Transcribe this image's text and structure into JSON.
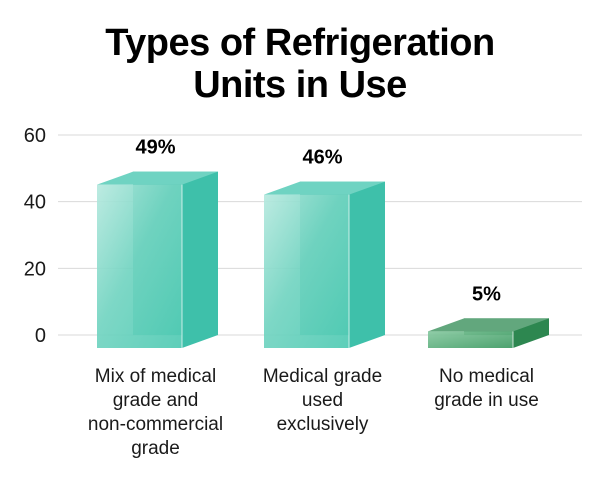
{
  "chart_data": {
    "type": "bar",
    "title_lines": [
      "Types of Refrigeration",
      "Units in Use"
    ],
    "categories": [
      [
        "Mix of medical",
        "grade and",
        "non-commercial",
        "grade"
      ],
      [
        "Medical grade",
        "used",
        "exclusively"
      ],
      [
        "No medical",
        "grade in use"
      ]
    ],
    "values": [
      49,
      46,
      5
    ],
    "data_labels": [
      "49%",
      "46%",
      "5%"
    ],
    "colors": [
      "#3fc4ad",
      "#3fc4ad",
      "#2e8a52"
    ],
    "ylim": [
      0,
      60
    ],
    "yticks": [
      0,
      20,
      40,
      60
    ],
    "grid": true,
    "style": "3d"
  }
}
